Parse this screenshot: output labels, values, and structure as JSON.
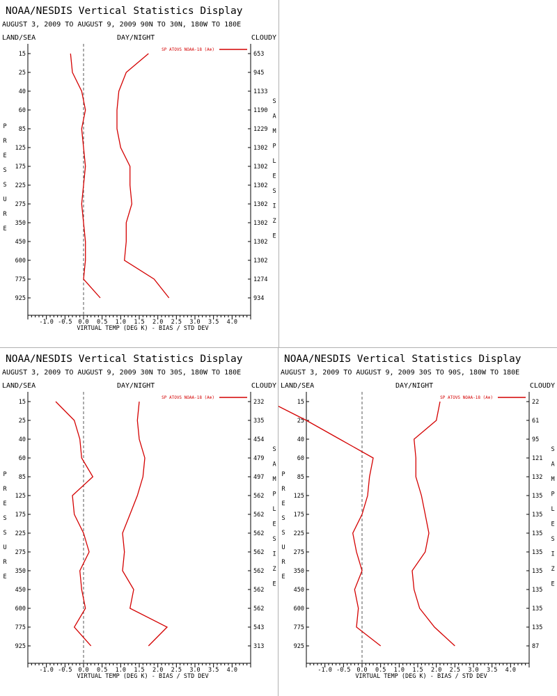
{
  "chart_data": [
    {
      "type": "line",
      "title": "NOAA/NESDIS Vertical Statistics Display",
      "subtitle": "AUGUST 3, 2009 TO AUGUST 9, 2009   90N TO 30N, 180W TO 180E",
      "corner_left": "LAND/SEA",
      "corner_center": "DAY/NIGHT",
      "corner_right": "CLOUDY",
      "xlabel": "VIRTUAL TEMP (DEG K) - BIAS / STD DEV",
      "ylabel": "PRESSURE",
      "y2label": "SAMPLE SIZE",
      "xlim": [
        -1.5,
        4.5
      ],
      "x_ticks": [
        "-1.0",
        "-0.5",
        "0.0",
        "0.5",
        "1.0",
        "1.5",
        "2.0",
        "2.5",
        "3.0",
        "3.5",
        "4.0"
      ],
      "x_tick_values": [
        -1.0,
        -0.5,
        0.0,
        0.5,
        1.0,
        1.5,
        2.0,
        2.5,
        3.0,
        3.5,
        4.0
      ],
      "pressure": [
        15,
        25,
        40,
        60,
        85,
        125,
        175,
        225,
        275,
        350,
        450,
        600,
        775,
        925
      ],
      "sample_size": [
        "653",
        "945",
        "1133",
        "1190",
        "1229",
        "1302",
        "1302",
        "1302",
        "1302",
        "1302",
        "1302",
        "1302",
        "1274",
        "934"
      ],
      "legend": "SP ATOVS NOAA-18 (A⊕)",
      "series": [
        {
          "key": "bias",
          "values": [
            -0.35,
            -0.3,
            -0.05,
            0.05,
            -0.05,
            0.0,
            0.05,
            0.0,
            -0.05,
            0.0,
            0.05,
            0.05,
            0.0,
            0.45
          ]
        },
        {
          "key": "stddev",
          "values": [
            1.75,
            1.15,
            0.95,
            0.9,
            0.9,
            1.0,
            1.25,
            1.25,
            1.3,
            1.15,
            1.15,
            1.1,
            1.9,
            2.3
          ]
        }
      ]
    },
    {
      "type": "line",
      "title": "NOAA/NESDIS Vertical Statistics Display",
      "subtitle": "AUGUST 3, 2009 TO AUGUST 9, 2009   30N TO 30S, 180W TO 180E",
      "corner_left": "LAND/SEA",
      "corner_center": "DAY/NIGHT",
      "corner_right": "CLOUDY",
      "xlabel": "VIRTUAL TEMP (DEG K) - BIAS / STD DEV",
      "ylabel": "PRESSURE",
      "y2label": "SAMPLE SIZE",
      "xlim": [
        -1.5,
        4.5
      ],
      "x_ticks": [
        "-1.0",
        "-0.5",
        "0.0",
        "0.5",
        "1.0",
        "1.5",
        "2.0",
        "2.5",
        "3.0",
        "3.5",
        "4.0"
      ],
      "x_tick_values": [
        -1.0,
        -0.5,
        0.0,
        0.5,
        1.0,
        1.5,
        2.0,
        2.5,
        3.0,
        3.5,
        4.0
      ],
      "pressure": [
        15,
        25,
        40,
        60,
        85,
        125,
        175,
        225,
        275,
        350,
        450,
        600,
        775,
        925
      ],
      "sample_size": [
        "232",
        "335",
        "454",
        "479",
        "497",
        "562",
        "562",
        "562",
        "562",
        "562",
        "562",
        "562",
        "543",
        "313"
      ],
      "legend": "SP ATOVS NOAA-18 (A⊕)",
      "series": [
        {
          "key": "bias",
          "values": [
            -0.75,
            -0.25,
            -0.1,
            -0.05,
            0.25,
            -0.3,
            -0.25,
            0.0,
            0.15,
            -0.1,
            -0.05,
            0.05,
            -0.25,
            0.2
          ]
        },
        {
          "key": "stddev",
          "values": [
            1.5,
            1.45,
            1.5,
            1.65,
            1.6,
            1.45,
            1.25,
            1.05,
            1.1,
            1.05,
            1.35,
            1.25,
            2.25,
            1.75
          ]
        }
      ]
    },
    {
      "type": "line",
      "title": "NOAA/NESDIS Vertical Statistics Display",
      "subtitle": "AUGUST 3, 2009 TO AUGUST 9, 2009   30S TO 90S, 180W TO 180E",
      "corner_left": "LAND/SEA",
      "corner_center": "DAY/NIGHT",
      "corner_right": "CLOUDY",
      "xlabel": "VIRTUAL TEMP (DEG K) - BIAS / STD DEV",
      "ylabel": "PRESSURE",
      "y2label": "SAMPLE SIZE",
      "xlim": [
        -1.5,
        4.5
      ],
      "x_ticks": [
        "-1.0",
        "-0.5",
        "0.0",
        "0.5",
        "1.0",
        "1.5",
        "2.0",
        "2.5",
        "3.0",
        "3.5",
        "4.0"
      ],
      "x_tick_values": [
        -1.0,
        -0.5,
        0.0,
        0.5,
        1.0,
        1.5,
        2.0,
        2.5,
        3.0,
        3.5,
        4.0
      ],
      "pressure": [
        15,
        25,
        40,
        60,
        85,
        125,
        175,
        225,
        275,
        350,
        450,
        600,
        775,
        925
      ],
      "sample_size": [
        "22",
        "61",
        "95",
        "121",
        "132",
        "135",
        "135",
        "135",
        "135",
        "135",
        "135",
        "135",
        "135",
        "87"
      ],
      "legend": "SP ATOVS NOAA-18 (A⊕)",
      "series": [
        {
          "key": "bias",
          "values": [
            -2.5,
            -1.5,
            -0.6,
            0.3,
            0.2,
            0.15,
            0.0,
            -0.25,
            -0.15,
            0.0,
            -0.2,
            -0.1,
            -0.15,
            0.5
          ]
        },
        {
          "key": "stddev",
          "values": [
            2.1,
            2.0,
            1.4,
            1.45,
            1.45,
            1.6,
            1.7,
            1.8,
            1.7,
            1.35,
            1.4,
            1.55,
            1.95,
            2.5
          ]
        }
      ]
    }
  ],
  "colors": {
    "line": "#d40000",
    "text": "#000000",
    "axis": "#000000",
    "zero_line": "#555555"
  }
}
